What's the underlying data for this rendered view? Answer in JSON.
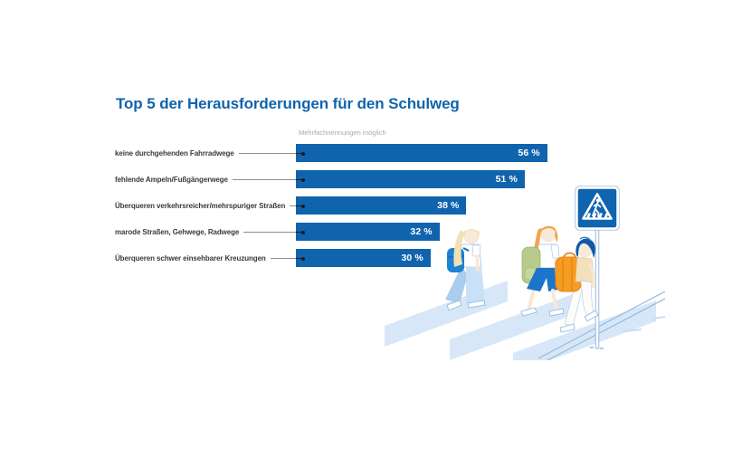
{
  "title": "Top 5 der Herausforderungen für den Schulweg",
  "note": "Mehrfachnennungen möglich",
  "chart_data": {
    "type": "bar",
    "orientation": "horizontal",
    "title": "Top 5 der Herausforderungen für den Schulweg",
    "note": "Mehrfachnennungen möglich",
    "categories": [
      "keine durchgehenden Fahrradwege",
      "fehlende Ampeln/Fußgängerwege",
      "Überqueren verkehrsreicher/mehrspuriger Straßen",
      "marode Straßen, Gehwege, Radwege",
      "Überqueren schwer einsehbarer Kreuzungen"
    ],
    "values": [
      56,
      51,
      38,
      32,
      30
    ],
    "value_labels": [
      "56 %",
      "51 %",
      "38 %",
      "32 %",
      "30 %"
    ],
    "unit": "%",
    "xlim": [
      0,
      60
    ],
    "grid": false,
    "legend": false,
    "bar_color": "#1063ad"
  },
  "icons": {
    "sign": "pedestrian-crossing-sign-icon"
  },
  "colors": {
    "accent": "#1063ad",
    "bar": "#1063ad",
    "title_text": "#1063ad",
    "label_text": "#3a3a3a",
    "note_text": "#a8a8a8",
    "leader": "#8f8f8f",
    "dot": "#1d1d1b",
    "value_text": "#ffffff",
    "stripe": "#d7e7f7",
    "outline": "#8fb4dc"
  }
}
